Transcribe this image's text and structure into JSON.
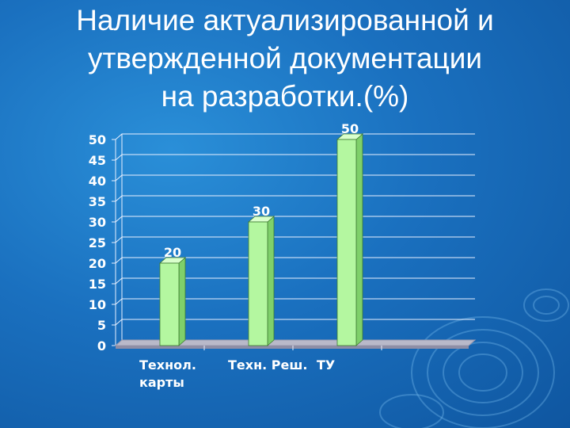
{
  "slide": {
    "title_lines": [
      "Наличие актуализированной и",
      "утвержденной документации",
      "на разработки.(%)"
    ]
  },
  "chart_data": {
    "type": "bar",
    "categories": [
      "Технол. карты",
      "Техн. Реш.",
      "ТУ"
    ],
    "category_lines": [
      [
        "Технол.",
        "карты"
      ],
      [
        "Техн. Реш."
      ],
      [
        "ТУ"
      ]
    ],
    "values": [
      20,
      30,
      50
    ],
    "data_labels": [
      "20",
      "30",
      "50"
    ],
    "ylim": [
      0,
      50
    ],
    "yticks": [
      0,
      5,
      10,
      15,
      20,
      25,
      30,
      35,
      40,
      45,
      50
    ],
    "grid": true,
    "bar_color": "#b4f7a0",
    "bar_side_color": "#7fd06a",
    "bar_top_color": "#d9ffcc",
    "grid_color": "#e8f0ff",
    "floor_color": "#b9b9c9"
  }
}
